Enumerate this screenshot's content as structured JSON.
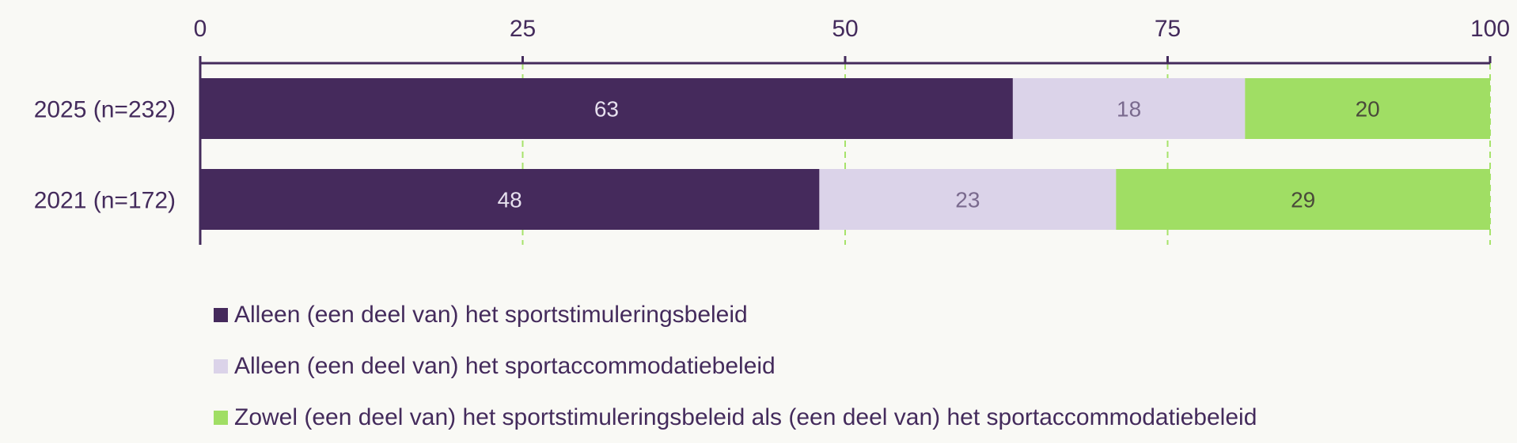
{
  "chart_data": {
    "type": "bar",
    "orientation": "horizontal",
    "stacked": true,
    "categories": [
      "2025 (n=232)",
      "2021 (n=172)"
    ],
    "series": [
      {
        "name": "Alleen (een deel van) het sportstimuleringsbeleid",
        "values": [
          63,
          48
        ],
        "color": "#452a5c",
        "label_color": "#e6e0ee"
      },
      {
        "name": "Alleen (een deel van) het sportaccommodatiebeleid",
        "values": [
          18,
          23
        ],
        "color": "#dbd3e9",
        "label_color": "#7a6a8e"
      },
      {
        "name": "Zowel (een deel van) het sportstimuleringsbeleid als (een deel van) het sportaccommodatiebeleid",
        "values": [
          20,
          29
        ],
        "color": "#a0de64",
        "label_color": "#4a4a3a"
      }
    ],
    "xlim": [
      0,
      100
    ],
    "xticks": [
      0,
      25,
      50,
      75,
      100
    ],
    "axis_position": "top",
    "grid": "vertical dashed",
    "grid_color": "#a6e36a",
    "legend_position": "bottom-left",
    "title": "",
    "xlabel": "",
    "ylabel": ""
  }
}
